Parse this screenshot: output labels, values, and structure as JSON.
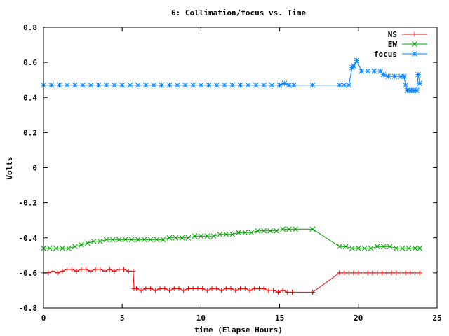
{
  "chart_data": {
    "type": "line",
    "title": "6: Collimation/focus vs. Time",
    "xlabel": "time (Elapse Hours)",
    "ylabel": "Volts",
    "xlim": [
      0,
      25
    ],
    "ylim": [
      -0.8,
      0.8
    ],
    "xticks": [
      0,
      5,
      10,
      15,
      20,
      25
    ],
    "yticks": [
      -0.8,
      -0.6,
      -0.4,
      -0.2,
      0,
      0.2,
      0.4,
      0.6,
      0.8
    ],
    "xtick_labels": [
      "0",
      "5",
      "10",
      "15",
      "20",
      "25"
    ],
    "ytick_labels": [
      "-0.8",
      "-0.6",
      "-0.4",
      "-0.2",
      "0",
      "0.2",
      "0.4",
      "0.6",
      "0.8"
    ],
    "legend_position": "top-right",
    "series": [
      {
        "name": "NS",
        "color": "#ff0000",
        "marker": "plus",
        "x": [
          0.0,
          0.3,
          0.6,
          0.9,
          1.2,
          1.5,
          1.8,
          2.1,
          2.4,
          2.7,
          3.0,
          3.3,
          3.6,
          3.9,
          4.2,
          4.5,
          4.8,
          5.1,
          5.4,
          5.7,
          5.75,
          5.9,
          6.2,
          6.5,
          6.8,
          7.1,
          7.4,
          7.7,
          8.0,
          8.3,
          8.6,
          8.9,
          9.2,
          9.5,
          9.8,
          10.1,
          10.4,
          10.7,
          11.0,
          11.3,
          11.6,
          11.9,
          12.2,
          12.5,
          12.8,
          13.1,
          13.4,
          13.7,
          14.0,
          14.3,
          14.6,
          14.9,
          15.2,
          15.5,
          15.8,
          17.1,
          18.8,
          19.1,
          19.4,
          19.7,
          20.0,
          20.3,
          20.6,
          20.9,
          21.2,
          21.5,
          21.8,
          22.1,
          22.4,
          22.7,
          23.0,
          23.3,
          23.6,
          23.9
        ],
        "values": [
          -0.6,
          -0.6,
          -0.59,
          -0.6,
          -0.59,
          -0.58,
          -0.58,
          -0.59,
          -0.58,
          -0.58,
          -0.59,
          -0.58,
          -0.58,
          -0.59,
          -0.58,
          -0.59,
          -0.58,
          -0.58,
          -0.59,
          -0.59,
          -0.69,
          -0.69,
          -0.7,
          -0.69,
          -0.69,
          -0.7,
          -0.69,
          -0.69,
          -0.7,
          -0.69,
          -0.69,
          -0.7,
          -0.69,
          -0.69,
          -0.69,
          -0.69,
          -0.7,
          -0.69,
          -0.69,
          -0.7,
          -0.69,
          -0.69,
          -0.7,
          -0.69,
          -0.69,
          -0.7,
          -0.69,
          -0.69,
          -0.69,
          -0.7,
          -0.7,
          -0.71,
          -0.7,
          -0.71,
          -0.71,
          -0.71,
          -0.6,
          -0.6,
          -0.6,
          -0.6,
          -0.6,
          -0.6,
          -0.6,
          -0.6,
          -0.6,
          -0.6,
          -0.6,
          -0.6,
          -0.6,
          -0.6,
          -0.6,
          -0.6,
          -0.6,
          -0.6
        ]
      },
      {
        "name": "EW",
        "color": "#00a000",
        "marker": "x",
        "x": [
          0.0,
          0.4,
          0.8,
          1.2,
          1.6,
          2.0,
          2.4,
          2.8,
          3.2,
          3.6,
          4.0,
          4.4,
          4.8,
          5.2,
          5.6,
          6.0,
          6.4,
          6.8,
          7.2,
          7.6,
          8.0,
          8.4,
          8.8,
          9.2,
          9.6,
          10.0,
          10.4,
          10.8,
          11.2,
          11.6,
          12.0,
          12.4,
          12.8,
          13.2,
          13.6,
          14.0,
          14.4,
          14.8,
          15.2,
          15.6,
          16.0,
          17.1,
          18.8,
          19.2,
          19.6,
          20.0,
          20.4,
          20.8,
          21.2,
          21.6,
          22.0,
          22.4,
          22.8,
          23.2,
          23.6,
          23.9
        ],
        "values": [
          -0.46,
          -0.46,
          -0.46,
          -0.46,
          -0.46,
          -0.45,
          -0.44,
          -0.43,
          -0.42,
          -0.42,
          -0.41,
          -0.41,
          -0.41,
          -0.41,
          -0.41,
          -0.41,
          -0.41,
          -0.41,
          -0.41,
          -0.41,
          -0.4,
          -0.4,
          -0.4,
          -0.4,
          -0.39,
          -0.39,
          -0.39,
          -0.39,
          -0.38,
          -0.38,
          -0.38,
          -0.37,
          -0.37,
          -0.37,
          -0.36,
          -0.36,
          -0.36,
          -0.36,
          -0.35,
          -0.35,
          -0.35,
          -0.35,
          -0.45,
          -0.45,
          -0.46,
          -0.46,
          -0.46,
          -0.46,
          -0.45,
          -0.45,
          -0.45,
          -0.46,
          -0.46,
          -0.46,
          -0.46,
          -0.46
        ]
      },
      {
        "name": "focus",
        "color": "#0080ff",
        "marker": "star",
        "x": [
          0.0,
          0.5,
          1.0,
          1.5,
          2.0,
          2.5,
          3.0,
          3.5,
          4.0,
          4.5,
          5.0,
          5.5,
          6.0,
          6.5,
          7.0,
          7.5,
          8.0,
          8.5,
          9.0,
          9.5,
          10.0,
          10.5,
          11.0,
          11.5,
          12.0,
          12.5,
          13.0,
          13.5,
          14.0,
          14.5,
          15.0,
          15.3,
          15.6,
          15.9,
          17.1,
          18.8,
          19.1,
          19.4,
          19.6,
          19.7,
          19.9,
          20.2,
          20.6,
          21.0,
          21.4,
          21.6,
          21.9,
          22.3,
          22.7,
          22.9,
          23.0,
          23.1,
          23.3,
          23.5,
          23.7,
          23.8,
          23.9
        ],
        "values": [
          0.47,
          0.47,
          0.47,
          0.47,
          0.47,
          0.47,
          0.47,
          0.47,
          0.47,
          0.47,
          0.47,
          0.47,
          0.47,
          0.47,
          0.47,
          0.47,
          0.47,
          0.47,
          0.47,
          0.47,
          0.47,
          0.47,
          0.47,
          0.47,
          0.47,
          0.47,
          0.47,
          0.47,
          0.47,
          0.47,
          0.47,
          0.48,
          0.47,
          0.47,
          0.47,
          0.47,
          0.47,
          0.47,
          0.57,
          0.58,
          0.61,
          0.55,
          0.55,
          0.55,
          0.55,
          0.53,
          0.52,
          0.52,
          0.52,
          0.52,
          0.47,
          0.44,
          0.44,
          0.44,
          0.44,
          0.53,
          0.48
        ]
      }
    ]
  }
}
